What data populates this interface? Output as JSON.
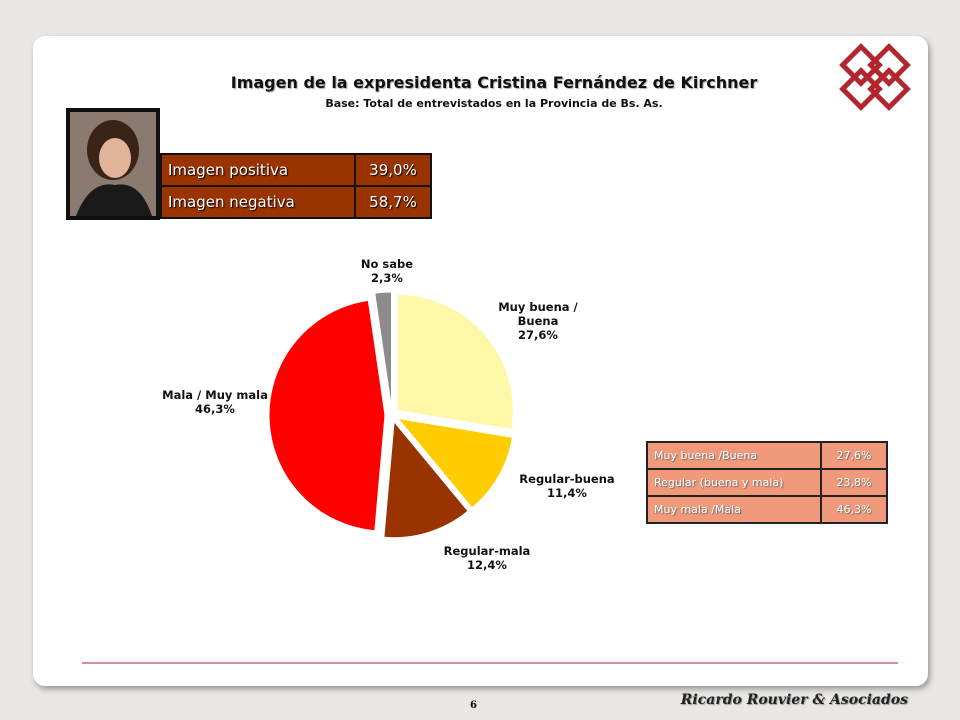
{
  "chart_data": {
    "type": "pie",
    "title": "Imagen de la expresidenta Cristina Fernández de Kirchner",
    "subtitle": "Base: Total de entrevistados en la Provincia de Bs. As.",
    "categories": [
      "Muy buena / Buena",
      "Regular-buena",
      "Regular-mala",
      "Mala / Muy mala",
      "No sabe"
    ],
    "values": [
      27.6,
      11.4,
      12.4,
      46.3,
      2.3
    ],
    "value_labels": [
      "27,6%",
      "11,4%",
      "12,4%",
      "46,3%",
      "2,3%"
    ],
    "colors": [
      "#fdf7a8",
      "#ffcc00",
      "#993300",
      "#ff0000",
      "#8c8c8c"
    ]
  },
  "summary_table": {
    "rows": [
      [
        "Imagen positiva",
        "39,0%"
      ],
      [
        "Imagen negativa",
        "58,7%"
      ]
    ]
  },
  "legend_table": {
    "rows": [
      [
        "Muy buena /Buena",
        "27,6%"
      ],
      [
        "Regular (buena y mala)",
        "23,8%"
      ],
      [
        "Muy mala /Mala",
        "46,3%"
      ]
    ]
  },
  "footer": {
    "page": "6",
    "brand": "Ricardo Rouvier & Asociados"
  }
}
